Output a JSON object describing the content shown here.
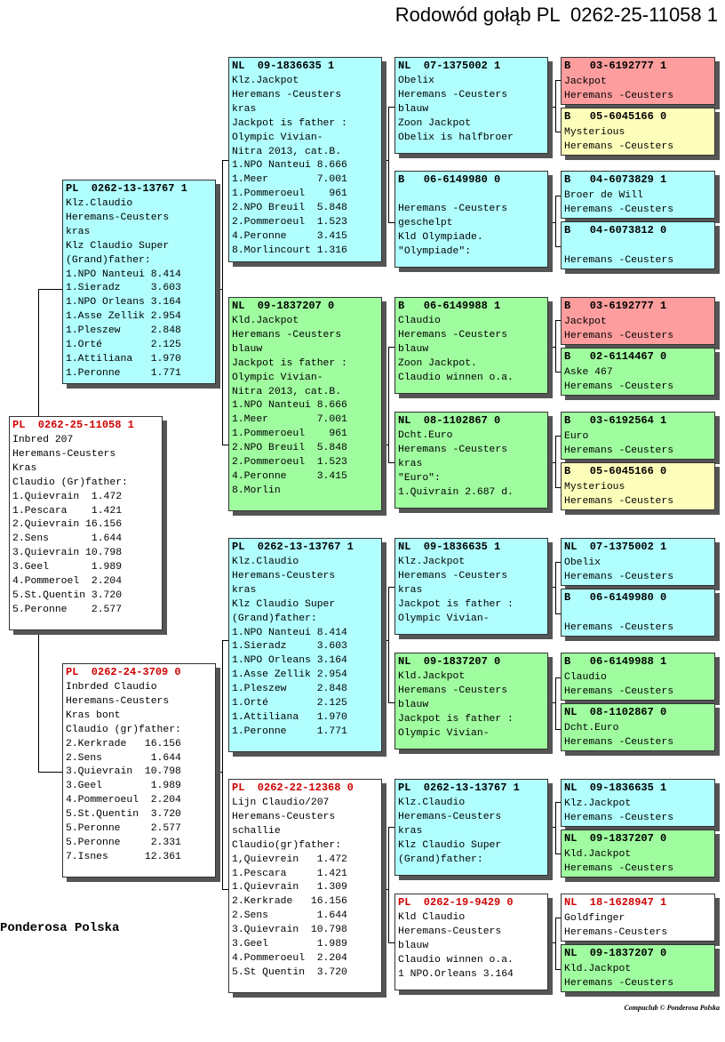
{
  "title": "Rodowód gołąb PL  0262-25-11058 1",
  "footer": "Ponderosa Polska",
  "credit": "Compuclub © Ponderosa Polska",
  "colors": {
    "cyan": "#b0fefe",
    "green": "#9ffc9f",
    "pink": "#fe9d9d",
    "yellow": "#fefebb",
    "white": "#ffffff",
    "red_ring": "#d00000"
  },
  "boxes": [
    {
      "ring": "PL  0262-25-11058 1",
      "red": true,
      "color": "white",
      "lines": [
        "Inbred 207",
        "Heremans-Ceusters",
        "Kras",
        "Claudio (Gr)father:",
        "1.Quievrain  1.472",
        "1.Pescara    1.421",
        "2.Quievrain 16.156",
        "2.Sens       1.644",
        "3.Quievrain 10.798",
        "3.Geel       1.989",
        "4.Pommeroel  2.204",
        "5.St.Quentin 3.720",
        "5.Peronne    2.577"
      ]
    },
    {
      "ring": "PL  0262-13-13767 1",
      "red": false,
      "color": "cyan",
      "lines": [
        "Klz.Claudio",
        "Heremans-Ceusters",
        "kras",
        "Klz Claudio Super",
        "(Grand)father:",
        "1.NPO Nanteui 8.414",
        "1.Sieradz     3.603",
        "1.NPO Orleans 3.164",
        "1.Asse Zellik 2.954",
        "1.Pleszew     2.848",
        "1.Orté        2.125",
        "1.Attiliana   1.970",
        "1.Peronne     1.771"
      ]
    },
    {
      "ring": "PL  0262-24-3709 0",
      "red": true,
      "color": "white",
      "lines": [
        "Inbrded Claudio",
        "Heremans-Ceusters",
        "Kras bont",
        "Claudio (gr)father:",
        "2.Kerkrade   16.156",
        "2.Sens        1.644",
        "3.Quievrain  10.798",
        "3.Geel        1.989",
        "4.Pommeroeul  2.204",
        "5.St.Quentin  3.720",
        "5.Peronne     2.577",
        "5.Peronne     2.331",
        "7.Isnes      12.361"
      ]
    },
    {
      "ring": "NL  09-1836635 1",
      "red": false,
      "color": "cyan",
      "lines": [
        "Klz.Jackpot",
        "Heremans -Ceusters",
        "kras",
        "Jackpot is father :",
        "Olympic Vivian-",
        "Nitra 2013, cat.B.",
        "1.NPO Nanteui 8.666",
        "1.Meer        7.001",
        "1.Pommeroeul    961",
        "2.NPO Breuil  5.848",
        "2.Pommeroeul  1.523",
        "4.Peronne     3.415",
        "8.Morlincourt 1.316"
      ]
    },
    {
      "ring": "NL  09-1837207 0",
      "red": false,
      "color": "green",
      "lines": [
        "Kld.Jackpot",
        "Heremans -Ceusters",
        "blauw",
        "Jackpot is father :",
        "Olympic Vivian-",
        "Nitra 2013, cat.B.",
        "1.NPO Nanteui 8.666",
        "1.Meer        7.001",
        "1.Pommeroeul    961",
        "2.NPO Breuil  5.848",
        "2.Pommeroeul  1.523",
        "4.Peronne     3.415",
        "8.Morlin"
      ]
    },
    {
      "ring": "PL  0262-13-13767 1",
      "red": false,
      "color": "cyan",
      "lines": [
        "Klz.Claudio",
        "Heremans-Ceusters",
        "kras",
        "Klz Claudio Super",
        "(Grand)father:",
        "1.NPO Nanteui 8.414",
        "1.Sieradz     3.603",
        "1.NPO Orleans 3.164",
        "1.Asse Zellik 2.954",
        "1.Pleszew     2.848",
        "1.Orté        2.125",
        "1.Attiliana   1.970",
        "1.Peronne     1.771"
      ]
    },
    {
      "ring": "PL  0262-22-12368 0",
      "red": true,
      "color": "white",
      "lines": [
        "Lijn Claudio/207",
        "Heremans-Ceusters",
        "schallie",
        "Claudio(gr)father:",
        "1,Quievrein   1.472",
        "1.Pescara     1.421",
        "1.Quievrain   1.309",
        "2.Kerkrade   16.156",
        "2.Sens        1.644",
        "3.Quievrain  10.798",
        "3.Geel        1.989",
        "4.Pommeroeul  2.204",
        "5.St Quentin  3.720"
      ]
    },
    {
      "ring": "NL  07-1375002 1",
      "red": false,
      "color": "cyan",
      "lines": [
        "Obelix",
        "Heremans -Ceusters",
        "blauw",
        "Zoon Jackpot",
        "Obelix is halfbroer"
      ]
    },
    {
      "ring": "B   06-6149980 0",
      "red": false,
      "color": "cyan",
      "lines": [
        "",
        "Heremans -Ceusters",
        "geschelpt",
        "Kld Olympiade.",
        "\"Olympiade\":"
      ]
    },
    {
      "ring": "B   06-6149988 1",
      "red": false,
      "color": "green",
      "lines": [
        "Claudio",
        "Heremans -Ceusters",
        "blauw",
        "Zoon Jackpot.",
        "Claudio winnen o.a."
      ]
    },
    {
      "ring": "NL  08-1102867 0",
      "red": false,
      "color": "green",
      "lines": [
        "Dcht.Euro",
        "Heremans -Ceusters",
        "kras",
        "\"Euro\":",
        "1.Quivrain 2.687 d."
      ]
    },
    {
      "ring": "NL  09-1836635 1",
      "red": false,
      "color": "cyan",
      "lines": [
        "Klz.Jackpot",
        "Heremans -Ceusters",
        "kras",
        "Jackpot is father :",
        "Olympic Vivian-"
      ]
    },
    {
      "ring": "NL  09-1837207 0",
      "red": false,
      "color": "green",
      "lines": [
        "Kld.Jackpot",
        "Heremans -Ceusters",
        "blauw",
        "Jackpot is father :",
        "Olympic Vivian-"
      ]
    },
    {
      "ring": "PL  0262-13-13767 1",
      "red": false,
      "color": "cyan",
      "lines": [
        "Klz.Claudio",
        "Heremans-Ceusters",
        "kras",
        "Klz Claudio Super",
        "(Grand)father:"
      ]
    },
    {
      "ring": "PL  0262-19-9429 0",
      "red": true,
      "color": "white",
      "lines": [
        "Kld Claudio",
        "Heremans-Ceusters",
        "blauw",
        "Claudio winnen o.a.",
        "1 NPO.Orleans 3.164"
      ]
    },
    {
      "ring": "B   03-6192777 1",
      "red": false,
      "color": "pink",
      "lines": [
        "Jackpot",
        "Heremans -Ceusters"
      ]
    },
    {
      "ring": "B   05-6045166 0",
      "red": false,
      "color": "yellow",
      "lines": [
        "Mysterious",
        "Heremans -Ceusters"
      ]
    },
    {
      "ring": "B   04-6073829 1",
      "red": false,
      "color": "cyan",
      "lines": [
        "Broer de Will",
        "Heremans -Ceusters"
      ]
    },
    {
      "ring": "B   04-6073812 0",
      "red": false,
      "color": "cyan",
      "lines": [
        "",
        "Heremans -Ceusters"
      ]
    },
    {
      "ring": "B   03-6192777 1",
      "red": false,
      "color": "pink",
      "lines": [
        "Jackpot",
        "Heremans -Ceusters"
      ]
    },
    {
      "ring": "B   02-6114467 0",
      "red": false,
      "color": "green",
      "lines": [
        "Aske 467",
        "Heremans -Ceusters"
      ]
    },
    {
      "ring": "B   03-6192564 1",
      "red": false,
      "color": "green",
      "lines": [
        "Euro",
        "Heremans -Ceusters"
      ]
    },
    {
      "ring": "B   05-6045166 0",
      "red": false,
      "color": "yellow",
      "lines": [
        "Mysterious",
        "Heremans -Ceusters"
      ]
    },
    {
      "ring": "NL  07-1375002 1",
      "red": false,
      "color": "cyan",
      "lines": [
        "Obelix",
        "Heremans -Ceusters"
      ]
    },
    {
      "ring": "B   06-6149980 0",
      "red": false,
      "color": "cyan",
      "lines": [
        "",
        "Heremans -Ceusters"
      ]
    },
    {
      "ring": "B   06-6149988 1",
      "red": false,
      "color": "green",
      "lines": [
        "Claudio",
        "Heremans -Ceusters"
      ]
    },
    {
      "ring": "NL  08-1102867 0",
      "red": false,
      "color": "green",
      "lines": [
        "Dcht.Euro",
        "Heremans -Ceusters"
      ]
    },
    {
      "ring": "NL  09-1836635 1",
      "red": false,
      "color": "cyan",
      "lines": [
        "Klz.Jackpot",
        "Heremans -Ceusters"
      ]
    },
    {
      "ring": "NL  09-1837207 0",
      "red": false,
      "color": "green",
      "lines": [
        "Kld.Jackpot",
        "Heremans -Ceusters"
      ]
    },
    {
      "ring": "NL  18-1628947 1",
      "red": true,
      "color": "white",
      "lines": [
        "Goldfinger",
        "Heremans-Ceusters"
      ]
    },
    {
      "ring": "NL  09-1837207 0",
      "red": false,
      "color": "green",
      "lines": [
        "Kld.Jackpot",
        "Heremans -Ceusters"
      ]
    }
  ]
}
